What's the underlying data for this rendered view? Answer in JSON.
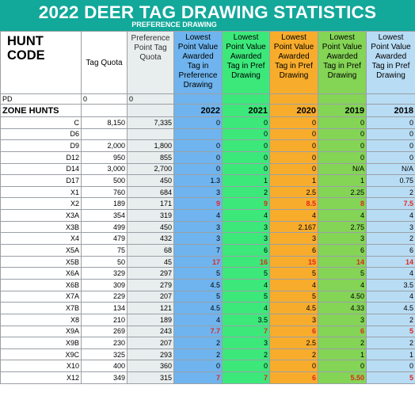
{
  "title": "2022 DEER TAG DRAWING STATISTICS",
  "subtitle": "PREFERENCE DRAWING",
  "headers": {
    "hunt_code": "HUNT CODE",
    "tag_quota": "Tag Quota",
    "pp_quota": "Preference Point Tag Quota",
    "h2022": "Lowest Point Value Awarded Tag in Preference Drawing",
    "h2021": "Lowest Point Value Awarded Tag in Pref Drawing",
    "h2020": "Lowest Point Value Awarded Tag in Pref Drawing",
    "h2019": "Lowest Point Value Awarded Tag in Pref Drawing",
    "h2018": "Lowest Point Value Awarded Tag in Pref Drawing"
  },
  "pd_row": {
    "label": "PD",
    "tag_quota": "0",
    "pp_quota": "0"
  },
  "zone_row": {
    "label": "ZONE   HUNTS",
    "y2022": "2022",
    "y2021": "2021",
    "y2020": "2020",
    "y2019": "2019",
    "y2018": "2018"
  },
  "colors": {
    "banner": "#12a89a",
    "red_text": "#e0281e",
    "col2022": "#6fb4ee",
    "col2021": "#3ce87a",
    "col2020": "#f8ac2c",
    "col2019": "#84d456",
    "col2018": "#b8dcf4"
  },
  "rows": [
    {
      "hunt": "C",
      "tq": "8,150",
      "pp": "7,335",
      "v": [
        "0",
        "0",
        "0",
        "0",
        "0"
      ],
      "red": [
        0,
        0,
        0,
        0,
        0
      ]
    },
    {
      "hunt": "D6",
      "tq": "",
      "pp": "",
      "v": [
        "",
        "0",
        "0",
        "0",
        "0"
      ],
      "red": [
        0,
        0,
        0,
        0,
        0
      ]
    },
    {
      "hunt": "D9",
      "tq": "2,000",
      "pp": "1,800",
      "v": [
        "0",
        "0",
        "0",
        "0",
        "0"
      ],
      "red": [
        0,
        0,
        0,
        0,
        0
      ]
    },
    {
      "hunt": "D12",
      "tq": "950",
      "pp": "855",
      "v": [
        "0",
        "0",
        "0",
        "0",
        "0"
      ],
      "red": [
        0,
        0,
        0,
        0,
        0
      ]
    },
    {
      "hunt": "D14",
      "tq": "3,000",
      "pp": "2,700",
      "v": [
        "0",
        "0",
        "0",
        "N/A",
        "N/A"
      ],
      "red": [
        0,
        0,
        0,
        0,
        0
      ]
    },
    {
      "hunt": "D17",
      "tq": "500",
      "pp": "450",
      "v": [
        "1.3",
        "1",
        "1",
        "1",
        "0.75"
      ],
      "red": [
        0,
        0,
        0,
        0,
        0
      ]
    },
    {
      "hunt": "X1",
      "tq": "760",
      "pp": "684",
      "v": [
        "3",
        "2",
        "2.5",
        "2.25",
        "2"
      ],
      "red": [
        0,
        0,
        0,
        0,
        0
      ]
    },
    {
      "hunt": "X2",
      "tq": "189",
      "pp": "171",
      "v": [
        "9",
        "9",
        "8.5",
        "8",
        "7.5"
      ],
      "red": [
        1,
        1,
        1,
        1,
        1
      ]
    },
    {
      "hunt": "X3A",
      "tq": "354",
      "pp": "319",
      "v": [
        "4",
        "4",
        "4",
        "4",
        "4"
      ],
      "red": [
        0,
        0,
        0,
        0,
        0
      ]
    },
    {
      "hunt": "X3B",
      "tq": "499",
      "pp": "450",
      "v": [
        "3",
        "3",
        "2.167",
        "2.75",
        "3"
      ],
      "red": [
        0,
        0,
        0,
        0,
        0
      ]
    },
    {
      "hunt": "X4",
      "tq": "479",
      "pp": "432",
      "v": [
        "3",
        "3",
        "3",
        "3",
        "2"
      ],
      "red": [
        0,
        0,
        0,
        0,
        0
      ]
    },
    {
      "hunt": "X5A",
      "tq": "75",
      "pp": "68",
      "v": [
        "7",
        "6",
        "6",
        "6",
        "6"
      ],
      "red": [
        0,
        0,
        0,
        0,
        0
      ]
    },
    {
      "hunt": "X5B",
      "tq": "50",
      "pp": "45",
      "v": [
        "17",
        "16",
        "15",
        "14",
        "14"
      ],
      "red": [
        1,
        1,
        1,
        1,
        1
      ]
    },
    {
      "hunt": "X6A",
      "tq": "329",
      "pp": "297",
      "v": [
        "5",
        "5",
        "5",
        "5",
        "4"
      ],
      "red": [
        0,
        0,
        0,
        0,
        0
      ]
    },
    {
      "hunt": "X6B",
      "tq": "309",
      "pp": "279",
      "v": [
        "4.5",
        "4",
        "4",
        "4",
        "3.5"
      ],
      "red": [
        0,
        0,
        0,
        0,
        0
      ]
    },
    {
      "hunt": "X7A",
      "tq": "229",
      "pp": "207",
      "v": [
        "5",
        "5",
        "5",
        "4.50",
        "4"
      ],
      "red": [
        0,
        0,
        0,
        0,
        0
      ]
    },
    {
      "hunt": "X7B",
      "tq": "134",
      "pp": "121",
      "v": [
        "4.5",
        "4",
        "4.5",
        "4.33",
        "4.5"
      ],
      "red": [
        0,
        0,
        0,
        0,
        0
      ]
    },
    {
      "hunt": "X8",
      "tq": "210",
      "pp": "189",
      "v": [
        "4",
        "3.5",
        "3",
        "3",
        "2"
      ],
      "red": [
        0,
        0,
        0,
        0,
        0
      ]
    },
    {
      "hunt": "X9A",
      "tq": "269",
      "pp": "243",
      "v": [
        "7.7",
        "7",
        "6",
        "6",
        "5"
      ],
      "red": [
        1,
        1,
        1,
        1,
        1
      ]
    },
    {
      "hunt": "X9B",
      "tq": "230",
      "pp": "207",
      "v": [
        "2",
        "3",
        "2.5",
        "2",
        "2"
      ],
      "red": [
        0,
        0,
        0,
        0,
        0
      ]
    },
    {
      "hunt": "X9C",
      "tq": "325",
      "pp": "293",
      "v": [
        "2",
        "2",
        "2",
        "1",
        "1"
      ],
      "red": [
        0,
        0,
        0,
        0,
        0
      ]
    },
    {
      "hunt": "X10",
      "tq": "400",
      "pp": "360",
      "v": [
        "0",
        "0",
        "0",
        "0",
        "0"
      ],
      "red": [
        0,
        0,
        0,
        0,
        0
      ]
    },
    {
      "hunt": "X12",
      "tq": "349",
      "pp": "315",
      "v": [
        "7",
        "7",
        "6",
        "5.50",
        "5"
      ],
      "red": [
        1,
        1,
        1,
        1,
        1
      ]
    }
  ]
}
